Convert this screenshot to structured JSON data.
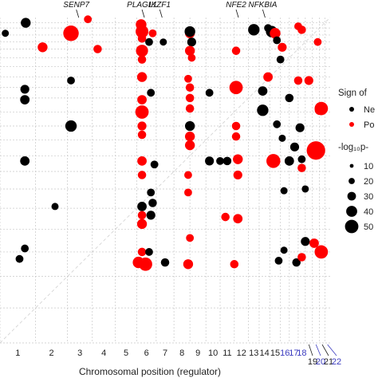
{
  "chart_data": {
    "type": "scatter",
    "xlabel": "Chromosomal position (regulator)",
    "ylabel": "",
    "chromosomes": [
      {
        "label": "1",
        "start": 0,
        "end": 20
      },
      {
        "label": "2",
        "start": 20,
        "end": 38
      },
      {
        "label": "3",
        "start": 38,
        "end": 52
      },
      {
        "label": "4",
        "start": 52,
        "end": 65
      },
      {
        "label": "5",
        "start": 65,
        "end": 77
      },
      {
        "label": "6",
        "start": 77,
        "end": 88
      },
      {
        "label": "7",
        "start": 88,
        "end": 98
      },
      {
        "label": "8",
        "start": 98,
        "end": 107
      },
      {
        "label": "9",
        "start": 107,
        "end": 116
      },
      {
        "label": "10",
        "start": 116,
        "end": 124
      },
      {
        "label": "11",
        "start": 124,
        "end": 132
      },
      {
        "label": "12",
        "start": 132,
        "end": 140
      },
      {
        "label": "13",
        "start": 140,
        "end": 146
      },
      {
        "label": "14",
        "start": 146,
        "end": 152
      },
      {
        "label": "15",
        "start": 152,
        "end": 158
      },
      {
        "label": "16",
        "start": 158,
        "end": 163
      },
      {
        "label": "17",
        "start": 163,
        "end": 168
      },
      {
        "label": "18",
        "start": 168,
        "end": 172
      },
      {
        "label": "19",
        "start": 172,
        "end": 176
      },
      {
        "label": "20",
        "start": 176,
        "end": 180
      },
      {
        "label": "21",
        "start": 180,
        "end": 183
      },
      {
        "label": "22",
        "start": 183,
        "end": 186
      }
    ],
    "blue_chromosomes": [
      "16",
      "17",
      "18",
      "20",
      "22"
    ],
    "xlim": [
      0,
      186
    ],
    "ylim": [
      0,
      186
    ],
    "gene_labels": [
      {
        "label": "SENP7",
        "x": 43
      },
      {
        "label": "PLAGL1",
        "x": 80
      },
      {
        "label": "IKZF1",
        "x": 90
      },
      {
        "label": "NFE2",
        "x": 133
      },
      {
        "label": "NFKBIA",
        "x": 148
      }
    ],
    "legend": {
      "sign_title": "Sign of",
      "sign_items": [
        {
          "label": "Ne",
          "color": "#000000"
        },
        {
          "label": "Po",
          "color": "#ff0000"
        }
      ],
      "size_title": "-log₁₀p-",
      "size_items": [
        {
          "label": "10",
          "value": 10
        },
        {
          "label": "20",
          "value": 20
        },
        {
          "label": "30",
          "value": 30
        },
        {
          "label": "40",
          "value": 40
        },
        {
          "label": "50",
          "value": 50
        }
      ]
    },
    "colors": {
      "Negative": "#000000",
      "Positive": "#ff0000",
      "blue_label": "#3b3bbf"
    },
    "points": [
      {
        "x": 14.5,
        "y": 183,
        "s": 8,
        "sign": "Negative"
      },
      {
        "x": 49.5,
        "y": 185,
        "s": 4,
        "sign": "Positive"
      },
      {
        "x": 79.5,
        "y": 182,
        "s": 10,
        "sign": "Positive"
      },
      {
        "x": 3,
        "y": 177,
        "s": 3,
        "sign": "Negative"
      },
      {
        "x": 40,
        "y": 177,
        "s": 26,
        "sign": "Positive"
      },
      {
        "x": 80,
        "y": 178,
        "s": 16,
        "sign": "Positive"
      },
      {
        "x": 86,
        "y": 177,
        "s": 4,
        "sign": "Positive"
      },
      {
        "x": 107,
        "y": 177,
        "s": 8,
        "sign": "Positive"
      },
      {
        "x": 107,
        "y": 178,
        "s": 10,
        "sign": "Negative"
      },
      {
        "x": 143,
        "y": 179,
        "s": 12,
        "sign": "Negative"
      },
      {
        "x": 151,
        "y": 180,
        "s": 4,
        "sign": "Negative"
      },
      {
        "x": 153,
        "y": 178,
        "s": 12,
        "sign": "Negative"
      },
      {
        "x": 155,
        "y": 177,
        "s": 10,
        "sign": "Positive"
      },
      {
        "x": 168,
        "y": 181,
        "s": 4,
        "sign": "Positive"
      },
      {
        "x": 170,
        "y": 179,
        "s": 5,
        "sign": "Positive"
      },
      {
        "x": 80,
        "y": 174,
        "s": 5,
        "sign": "Positive"
      },
      {
        "x": 84,
        "y": 172,
        "s": 4,
        "sign": "Negative"
      },
      {
        "x": 92,
        "y": 172,
        "s": 3,
        "sign": "Negative"
      },
      {
        "x": 108,
        "y": 172,
        "s": 6,
        "sign": "Negative"
      },
      {
        "x": 156,
        "y": 173,
        "s": 4,
        "sign": "Negative"
      },
      {
        "x": 179,
        "y": 172,
        "s": 4,
        "sign": "Positive"
      },
      {
        "x": 24,
        "y": 169,
        "s": 8,
        "sign": "Positive"
      },
      {
        "x": 55,
        "y": 168,
        "s": 5,
        "sign": "Positive"
      },
      {
        "x": 80,
        "y": 167,
        "s": 14,
        "sign": "Positive"
      },
      {
        "x": 107,
        "y": 167,
        "s": 8,
        "sign": "Positive"
      },
      {
        "x": 133,
        "y": 167,
        "s": 5,
        "sign": "Positive"
      },
      {
        "x": 159,
        "y": 169,
        "s": 6,
        "sign": "Positive"
      },
      {
        "x": 80,
        "y": 162,
        "s": 5,
        "sign": "Positive"
      },
      {
        "x": 108,
        "y": 163,
        "s": 4,
        "sign": "Positive"
      },
      {
        "x": 158,
        "y": 162,
        "s": 4,
        "sign": "Negative"
      },
      {
        "x": 40,
        "y": 150,
        "s": 4,
        "sign": "Negative"
      },
      {
        "x": 80,
        "y": 152,
        "s": 8,
        "sign": "Positive"
      },
      {
        "x": 106,
        "y": 151,
        "s": 4,
        "sign": "Positive"
      },
      {
        "x": 151,
        "y": 152,
        "s": 7,
        "sign": "Positive"
      },
      {
        "x": 168,
        "y": 150,
        "s": 5,
        "sign": "Positive"
      },
      {
        "x": 174,
        "y": 150,
        "s": 6,
        "sign": "Positive"
      },
      {
        "x": 14,
        "y": 145,
        "s": 6,
        "sign": "Negative"
      },
      {
        "x": 85,
        "y": 143,
        "s": 4,
        "sign": "Negative"
      },
      {
        "x": 107,
        "y": 146,
        "s": 5,
        "sign": "Positive"
      },
      {
        "x": 118,
        "y": 143,
        "s": 4,
        "sign": "Negative"
      },
      {
        "x": 133,
        "y": 146,
        "s": 18,
        "sign": "Positive"
      },
      {
        "x": 148,
        "y": 144,
        "s": 7,
        "sign": "Negative"
      },
      {
        "x": 14,
        "y": 139,
        "s": 7,
        "sign": "Negative"
      },
      {
        "x": 80,
        "y": 139,
        "s": 7,
        "sign": "Positive"
      },
      {
        "x": 107,
        "y": 140,
        "s": 5,
        "sign": "Positive"
      },
      {
        "x": 163,
        "y": 140,
        "s": 5,
        "sign": "Negative"
      },
      {
        "x": 80,
        "y": 132,
        "s": 18,
        "sign": "Positive"
      },
      {
        "x": 107,
        "y": 134,
        "s": 5,
        "sign": "Positive"
      },
      {
        "x": 148,
        "y": 133,
        "s": 12,
        "sign": "Negative"
      },
      {
        "x": 180,
        "y": 133,
        "s": 7,
        "sign": "Positive"
      },
      {
        "x": 181,
        "y": 134,
        "s": 18,
        "sign": "Positive"
      },
      {
        "x": 40,
        "y": 124,
        "s": 12,
        "sign": "Negative"
      },
      {
        "x": 80,
        "y": 124,
        "s": 6,
        "sign": "Positive"
      },
      {
        "x": 107,
        "y": 124,
        "s": 8,
        "sign": "Negative"
      },
      {
        "x": 133,
        "y": 124,
        "s": 5,
        "sign": "Positive"
      },
      {
        "x": 156,
        "y": 125,
        "s": 4,
        "sign": "Negative"
      },
      {
        "x": 169,
        "y": 123,
        "s": 6,
        "sign": "Negative"
      },
      {
        "x": 80,
        "y": 119,
        "s": 5,
        "sign": "Positive"
      },
      {
        "x": 107,
        "y": 118,
        "s": 8,
        "sign": "Positive"
      },
      {
        "x": 133,
        "y": 118,
        "s": 5,
        "sign": "Positive"
      },
      {
        "x": 159,
        "y": 117,
        "s": 3,
        "sign": "Negative"
      },
      {
        "x": 107,
        "y": 113,
        "s": 8,
        "sign": "Positive"
      },
      {
        "x": 166,
        "y": 112,
        "s": 6,
        "sign": "Negative"
      },
      {
        "x": 14,
        "y": 104,
        "s": 7,
        "sign": "Negative"
      },
      {
        "x": 80,
        "y": 104,
        "s": 7,
        "sign": "Positive"
      },
      {
        "x": 87,
        "y": 102,
        "s": 4,
        "sign": "Negative"
      },
      {
        "x": 118,
        "y": 104,
        "s": 6,
        "sign": "Negative"
      },
      {
        "x": 124,
        "y": 104,
        "s": 4,
        "sign": "Negative"
      },
      {
        "x": 128,
        "y": 104,
        "s": 5,
        "sign": "Negative"
      },
      {
        "x": 134,
        "y": 105,
        "s": 8,
        "sign": "Positive"
      },
      {
        "x": 154,
        "y": 104,
        "s": 20,
        "sign": "Positive"
      },
      {
        "x": 163,
        "y": 104,
        "s": 7,
        "sign": "Negative"
      },
      {
        "x": 170,
        "y": 105,
        "s": 4,
        "sign": "Negative"
      },
      {
        "x": 170,
        "y": 100,
        "s": 5,
        "sign": "Positive"
      },
      {
        "x": 178,
        "y": 110,
        "s": 40,
        "sign": "Positive"
      },
      {
        "x": 80,
        "y": 96,
        "s": 5,
        "sign": "Positive"
      },
      {
        "x": 106,
        "y": 96,
        "s": 4,
        "sign": "Positive"
      },
      {
        "x": 134,
        "y": 96,
        "s": 6,
        "sign": "Positive"
      },
      {
        "x": 85,
        "y": 86,
        "s": 4,
        "sign": "Negative"
      },
      {
        "x": 106,
        "y": 86,
        "s": 4,
        "sign": "Positive"
      },
      {
        "x": 160,
        "y": 87,
        "s": 3,
        "sign": "Negative"
      },
      {
        "x": 172,
        "y": 88,
        "s": 3,
        "sign": "Negative"
      },
      {
        "x": 31,
        "y": 78,
        "s": 3,
        "sign": "Negative"
      },
      {
        "x": 80,
        "y": 78,
        "s": 7,
        "sign": "Negative"
      },
      {
        "x": 86,
        "y": 80,
        "s": 5,
        "sign": "Negative"
      },
      {
        "x": 80,
        "y": 73,
        "s": 5,
        "sign": "Positive"
      },
      {
        "x": 85,
        "y": 73,
        "s": 6,
        "sign": "Negative"
      },
      {
        "x": 80,
        "y": 68,
        "s": 8,
        "sign": "Positive"
      },
      {
        "x": 127,
        "y": 72,
        "s": 5,
        "sign": "Positive"
      },
      {
        "x": 134,
        "y": 71,
        "s": 7,
        "sign": "Positive"
      },
      {
        "x": 107,
        "y": 60,
        "s": 4,
        "sign": "Positive"
      },
      {
        "x": 172,
        "y": 58,
        "s": 6,
        "sign": "Negative"
      },
      {
        "x": 177,
        "y": 57,
        "s": 7,
        "sign": "Positive"
      },
      {
        "x": 14,
        "y": 54,
        "s": 4,
        "sign": "Negative"
      },
      {
        "x": 80,
        "y": 52,
        "s": 5,
        "sign": "Positive"
      },
      {
        "x": 84,
        "y": 52,
        "s": 4,
        "sign": "Negative"
      },
      {
        "x": 160,
        "y": 53,
        "s": 3,
        "sign": "Negative"
      },
      {
        "x": 181,
        "y": 52,
        "s": 18,
        "sign": "Positive"
      },
      {
        "x": 11,
        "y": 48,
        "s": 4,
        "sign": "Negative"
      },
      {
        "x": 78,
        "y": 46,
        "s": 12,
        "sign": "Positive"
      },
      {
        "x": 82,
        "y": 45,
        "s": 18,
        "sign": "Positive"
      },
      {
        "x": 93,
        "y": 46,
        "s": 5,
        "sign": "Negative"
      },
      {
        "x": 106,
        "y": 45,
        "s": 8,
        "sign": "Positive"
      },
      {
        "x": 132,
        "y": 45,
        "s": 5,
        "sign": "Positive"
      },
      {
        "x": 157,
        "y": 47,
        "s": 4,
        "sign": "Negative"
      },
      {
        "x": 167,
        "y": 46,
        "s": 5,
        "sign": "Negative"
      },
      {
        "x": 170,
        "y": 49,
        "s": 5,
        "sign": "Positive"
      }
    ]
  }
}
